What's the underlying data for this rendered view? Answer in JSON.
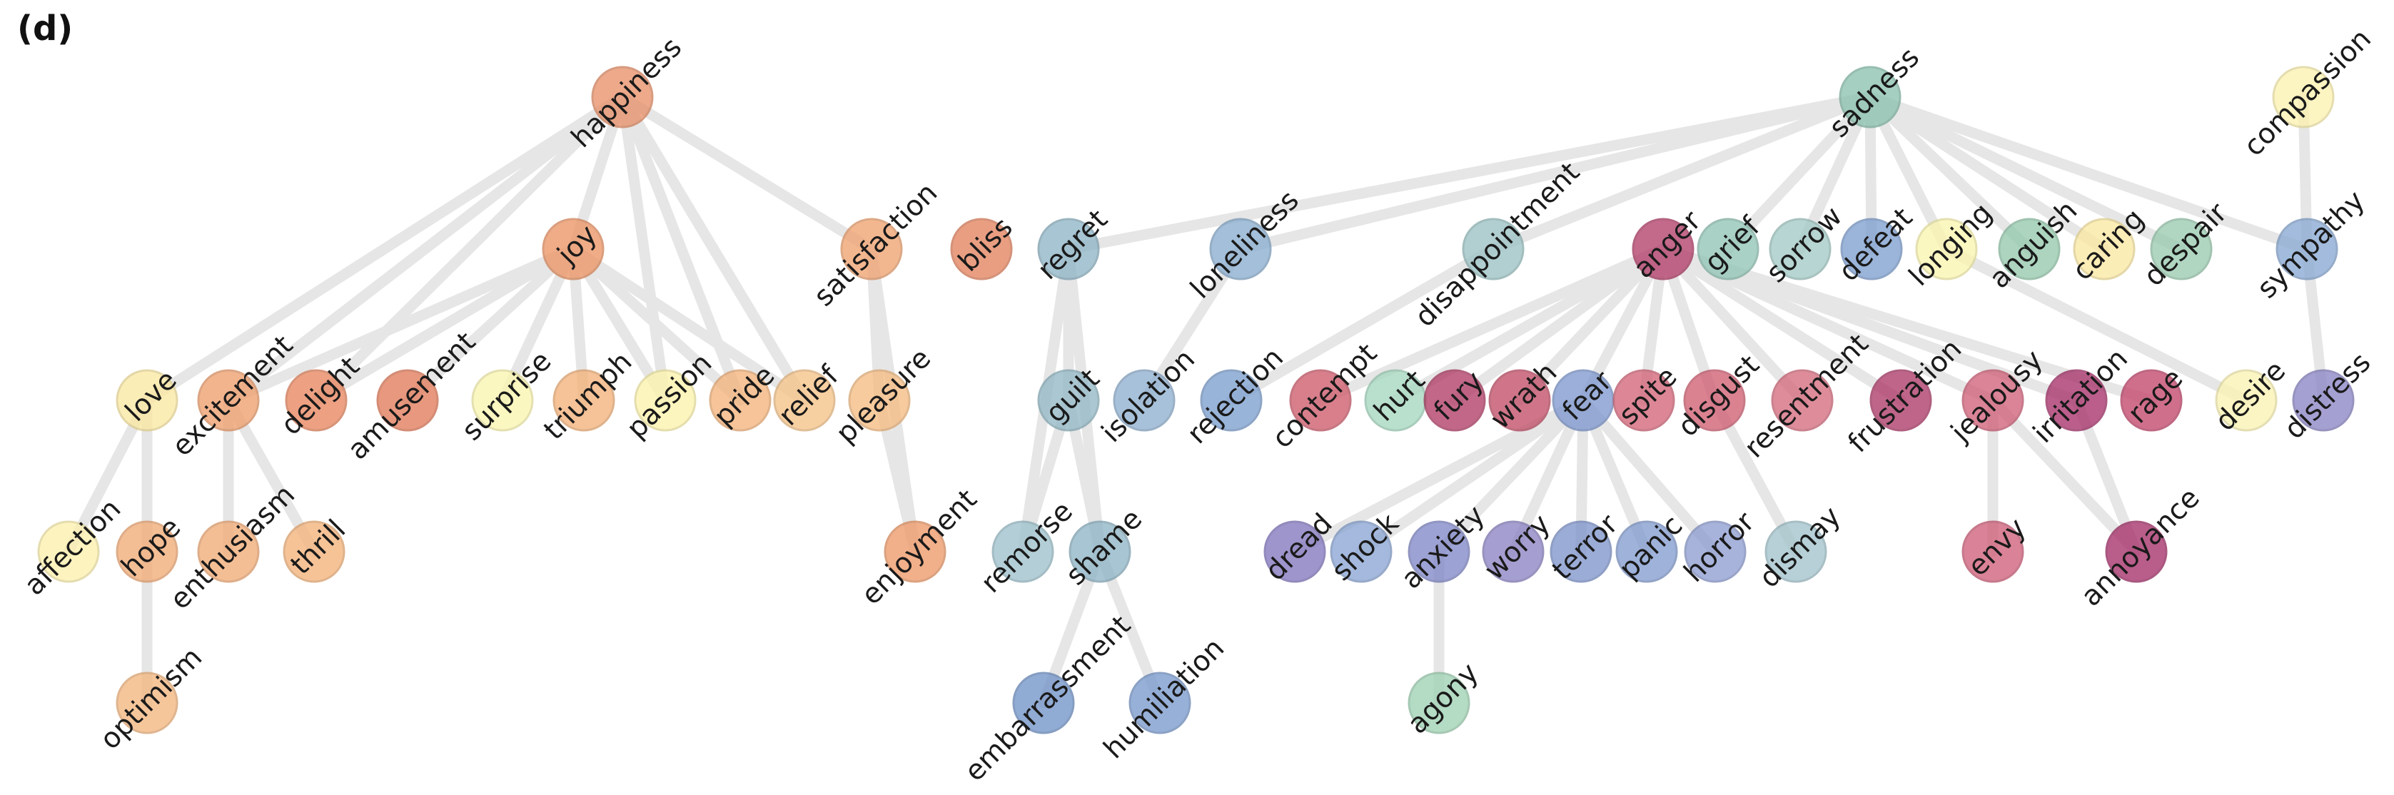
{
  "panel_label": "(d)",
  "colors": {
    "happiness": "#e8916a",
    "joy": "#ec9666",
    "satisfaction": "#f0a472",
    "bliss": "#e3845f",
    "love": "#fbe8a2",
    "excitement": "#efa06e",
    "delight": "#e8875f",
    "amusement": "#e27c5b",
    "surprise": "#fbf6b0",
    "triumph": "#f4b27a",
    "passion": "#fcf3ac",
    "pride": "#f4b47c",
    "relief": "#f6c489",
    "pleasure": "#f5bd83",
    "affection": "#fcf0ae",
    "hope": "#f2ac77",
    "enthusiasm": "#f2ac77",
    "thrill": "#f4b37b",
    "optimism": "#f4b77f",
    "enjoyment": "#ee9a6a",
    "regret": "#8fb5c6",
    "loneliness": "#8aaed0",
    "disappointment": "#9cc2c4",
    "guilt": "#94b9c6",
    "isolation": "#8fb0d0",
    "rejection": "#7d9fcf",
    "remorse": "#9ec1cd",
    "shame": "#8fb5c6",
    "embarrassment": "#7294c8",
    "humiliation": "#7a9bce",
    "sadness": "#8cc2b0",
    "grief": "#92c5b6",
    "sorrow": "#a3cac6",
    "defeat": "#7e9fd0",
    "longing": "#fbf5b0",
    "anguish": "#95c9ad",
    "caring": "#fbe8a2",
    "despair": "#9acbb0",
    "compassion": "#fcf1b0",
    "sympathy": "#8aaad4",
    "desire": "#fbf3b4",
    "distress": "#8c86c6",
    "anger": "#b33f6a",
    "contempt": "#cf5c6c",
    "hurt": "#a6d8c0",
    "fury": "#b23d66",
    "wrath": "#c34f69",
    "fear": "#7f99d0",
    "spite": "#d46579",
    "disgust": "#d15f73",
    "resentment": "#d66c7e",
    "frustration": "#ae3a68",
    "jealousy": "#d1627a",
    "irritation": "#a8326b",
    "rage": "#c4476d",
    "dread": "#8478c0",
    "shock": "#8ba6d4",
    "anxiety": "#8188c8",
    "worry": "#8c84c4",
    "terror": "#7f95cc",
    "panic": "#849dd0",
    "horror": "#8f9ed2",
    "dismay": "#a3c4cc",
    "agony": "#a0d2b4",
    "envy": "#d0607a",
    "annoyance": "#a6306a"
  },
  "nodes": [
    {
      "id": "happiness",
      "label": "happiness"
    },
    {
      "id": "joy",
      "label": "joy"
    },
    {
      "id": "satisfaction",
      "label": "satisfaction"
    },
    {
      "id": "bliss",
      "label": "bliss"
    },
    {
      "id": "love",
      "label": "love"
    },
    {
      "id": "excitement",
      "label": "excitement"
    },
    {
      "id": "delight",
      "label": "delight"
    },
    {
      "id": "amusement",
      "label": "amusement"
    },
    {
      "id": "surprise",
      "label": "surprise"
    },
    {
      "id": "triumph",
      "label": "triumph"
    },
    {
      "id": "passion",
      "label": "passion"
    },
    {
      "id": "pride",
      "label": "pride"
    },
    {
      "id": "relief",
      "label": "relief"
    },
    {
      "id": "pleasure",
      "label": "pleasure"
    },
    {
      "id": "affection",
      "label": "affection"
    },
    {
      "id": "hope",
      "label": "hope"
    },
    {
      "id": "enthusiasm",
      "label": "enthusiasm"
    },
    {
      "id": "thrill",
      "label": "thrill"
    },
    {
      "id": "optimism",
      "label": "optimism"
    },
    {
      "id": "enjoyment",
      "label": "enjoyment"
    },
    {
      "id": "regret",
      "label": "regret"
    },
    {
      "id": "loneliness",
      "label": "loneliness"
    },
    {
      "id": "disappointment",
      "label": "disappointment"
    },
    {
      "id": "guilt",
      "label": "guilt"
    },
    {
      "id": "isolation",
      "label": "isolation"
    },
    {
      "id": "rejection",
      "label": "rejection"
    },
    {
      "id": "remorse",
      "label": "remorse"
    },
    {
      "id": "shame",
      "label": "shame"
    },
    {
      "id": "embarrassment",
      "label": "embarrassment"
    },
    {
      "id": "humiliation",
      "label": "humiliation"
    },
    {
      "id": "sadness",
      "label": "sadness"
    },
    {
      "id": "grief",
      "label": "grief"
    },
    {
      "id": "sorrow",
      "label": "sorrow"
    },
    {
      "id": "defeat",
      "label": "defeat"
    },
    {
      "id": "longing",
      "label": "longing"
    },
    {
      "id": "anguish",
      "label": "anguish"
    },
    {
      "id": "caring",
      "label": "caring"
    },
    {
      "id": "despair",
      "label": "despair"
    },
    {
      "id": "compassion",
      "label": "compassion"
    },
    {
      "id": "sympathy",
      "label": "sympathy"
    },
    {
      "id": "desire",
      "label": "desire"
    },
    {
      "id": "distress",
      "label": "distress"
    },
    {
      "id": "anger",
      "label": "anger"
    },
    {
      "id": "contempt",
      "label": "contempt"
    },
    {
      "id": "hurt",
      "label": "hurt"
    },
    {
      "id": "fury",
      "label": "fury"
    },
    {
      "id": "wrath",
      "label": "wrath"
    },
    {
      "id": "fear",
      "label": "fear"
    },
    {
      "id": "spite",
      "label": "spite"
    },
    {
      "id": "disgust",
      "label": "disgust"
    },
    {
      "id": "resentment",
      "label": "resentment"
    },
    {
      "id": "frustration",
      "label": "frustration"
    },
    {
      "id": "jealousy",
      "label": "jealousy"
    },
    {
      "id": "irritation",
      "label": "irritation"
    },
    {
      "id": "rage",
      "label": "rage"
    },
    {
      "id": "dread",
      "label": "dread"
    },
    {
      "id": "shock",
      "label": "shock"
    },
    {
      "id": "anxiety",
      "label": "anxiety"
    },
    {
      "id": "worry",
      "label": "worry"
    },
    {
      "id": "terror",
      "label": "terror"
    },
    {
      "id": "panic",
      "label": "panic"
    },
    {
      "id": "horror",
      "label": "horror"
    },
    {
      "id": "dismay",
      "label": "dismay"
    },
    {
      "id": "agony",
      "label": "agony"
    },
    {
      "id": "envy",
      "label": "envy"
    },
    {
      "id": "annoyance",
      "label": "annoyance"
    }
  ],
  "edges": [
    [
      "happiness",
      "joy"
    ],
    [
      "happiness",
      "satisfaction"
    ],
    [
      "happiness",
      "love"
    ],
    [
      "happiness",
      "excitement"
    ],
    [
      "happiness",
      "delight"
    ],
    [
      "happiness",
      "pride"
    ],
    [
      "happiness",
      "relief"
    ],
    [
      "happiness",
      "passion"
    ],
    [
      "joy",
      "excitement"
    ],
    [
      "joy",
      "delight"
    ],
    [
      "joy",
      "amusement"
    ],
    [
      "joy",
      "surprise"
    ],
    [
      "joy",
      "triumph"
    ],
    [
      "joy",
      "passion"
    ],
    [
      "joy",
      "pride"
    ],
    [
      "joy",
      "relief"
    ],
    [
      "satisfaction",
      "pleasure"
    ],
    [
      "satisfaction",
      "enjoyment"
    ],
    [
      "pleasure",
      "enjoyment"
    ],
    [
      "love",
      "affection"
    ],
    [
      "love",
      "hope"
    ],
    [
      "hope",
      "optimism"
    ],
    [
      "excitement",
      "enthusiasm"
    ],
    [
      "excitement",
      "thrill"
    ],
    [
      "regret",
      "guilt"
    ],
    [
      "regret",
      "remorse"
    ],
    [
      "regret",
      "shame"
    ],
    [
      "guilt",
      "remorse"
    ],
    [
      "guilt",
      "shame"
    ],
    [
      "shame",
      "embarrassment"
    ],
    [
      "shame",
      "humiliation"
    ],
    [
      "loneliness",
      "isolation"
    ],
    [
      "sadness",
      "regret"
    ],
    [
      "sadness",
      "loneliness"
    ],
    [
      "sadness",
      "disappointment"
    ],
    [
      "sadness",
      "grief"
    ],
    [
      "sadness",
      "sorrow"
    ],
    [
      "sadness",
      "defeat"
    ],
    [
      "sadness",
      "longing"
    ],
    [
      "sadness",
      "anguish"
    ],
    [
      "sadness",
      "caring"
    ],
    [
      "sadness",
      "despair"
    ],
    [
      "sadness",
      "sympathy"
    ],
    [
      "disappointment",
      "rejection"
    ],
    [
      "compassion",
      "sympathy"
    ],
    [
      "sympathy",
      "distress"
    ],
    [
      "longing",
      "desire"
    ],
    [
      "anger",
      "contempt"
    ],
    [
      "anger",
      "hurt"
    ],
    [
      "anger",
      "fury"
    ],
    [
      "anger",
      "wrath"
    ],
    [
      "anger",
      "fear"
    ],
    [
      "anger",
      "spite"
    ],
    [
      "anger",
      "disgust"
    ],
    [
      "anger",
      "resentment"
    ],
    [
      "anger",
      "frustration"
    ],
    [
      "anger",
      "jealousy"
    ],
    [
      "anger",
      "irritation"
    ],
    [
      "anger",
      "rage"
    ],
    [
      "fear",
      "dread"
    ],
    [
      "fear",
      "shock"
    ],
    [
      "fear",
      "anxiety"
    ],
    [
      "fear",
      "worry"
    ],
    [
      "fear",
      "terror"
    ],
    [
      "fear",
      "panic"
    ],
    [
      "fear",
      "horror"
    ],
    [
      "disgust",
      "dismay"
    ],
    [
      "anxiety",
      "agony"
    ],
    [
      "jealousy",
      "envy"
    ],
    [
      "jealousy",
      "annoyance"
    ],
    [
      "irritation",
      "annoyance"
    ]
  ]
}
